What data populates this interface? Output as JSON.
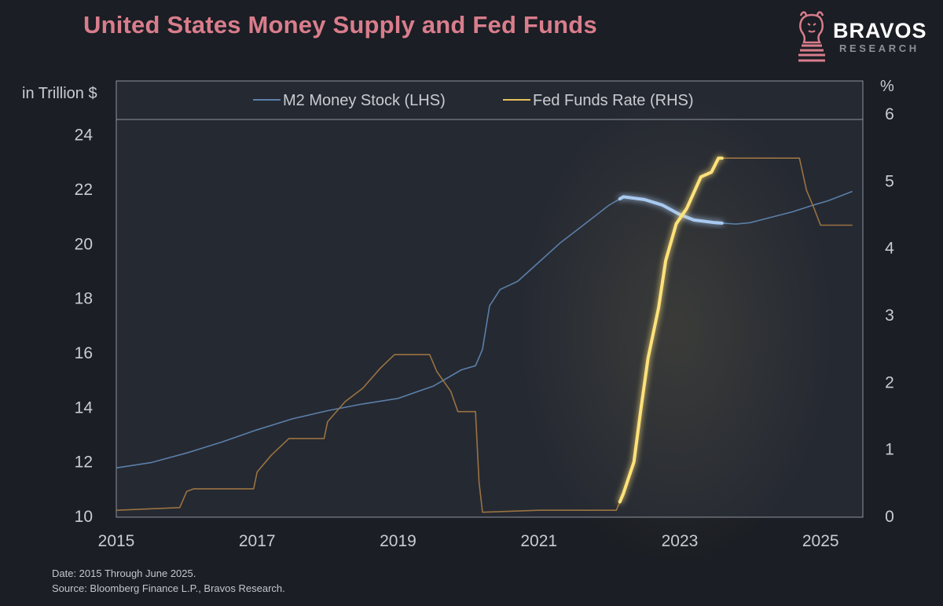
{
  "header": {
    "title": "United States Money Supply and Fed Funds"
  },
  "brand": {
    "name": "BRAVOS",
    "sub": "RESEARCH",
    "icon": "bull-chess-knight-icon",
    "accent": "#d97d8c"
  },
  "footer": {
    "date_note": "Date: 2015 Through June 2025.",
    "source_note": "Source: Bloomberg Finance L.P., Bravos Research."
  },
  "chart_data": {
    "type": "line",
    "title": "United States Money Supply and Fed Funds",
    "left_axis": {
      "label": "in Trillion $",
      "range": [
        10,
        25
      ],
      "ticks": [
        10,
        12,
        14,
        16,
        18,
        20,
        22,
        24
      ]
    },
    "right_axis": {
      "label": "%",
      "range": [
        0,
        6
      ],
      "ticks": [
        0,
        1,
        2,
        3,
        4,
        5,
        6
      ]
    },
    "x_axis": {
      "range": [
        2015.0,
        2025.6
      ],
      "ticks": [
        2015,
        2017,
        2019,
        2021,
        2023,
        2025
      ]
    },
    "legend": {
      "position": "top",
      "entries": [
        "M2 Money Stock (LHS)",
        "Fed Funds Rate (RHS)"
      ]
    },
    "grid": false,
    "highlight_window": [
      2022.15,
      2023.6
    ],
    "series": [
      {
        "name": "M2 Money Stock (LHS)",
        "axis": "left",
        "color": "#5b7fa8",
        "highlight_color": "#a9c9f0",
        "points": [
          [
            2015.0,
            11.75
          ],
          [
            2015.5,
            11.95
          ],
          [
            2016.0,
            12.3
          ],
          [
            2016.5,
            12.7
          ],
          [
            2017.0,
            13.15
          ],
          [
            2017.5,
            13.55
          ],
          [
            2018.0,
            13.85
          ],
          [
            2018.5,
            14.1
          ],
          [
            2019.0,
            14.3
          ],
          [
            2019.5,
            14.75
          ],
          [
            2019.9,
            15.35
          ],
          [
            2020.1,
            15.5
          ],
          [
            2020.2,
            16.1
          ],
          [
            2020.3,
            17.7
          ],
          [
            2020.45,
            18.3
          ],
          [
            2020.7,
            18.6
          ],
          [
            2021.0,
            19.3
          ],
          [
            2021.3,
            20.0
          ],
          [
            2021.5,
            20.4
          ],
          [
            2021.75,
            20.9
          ],
          [
            2022.0,
            21.4
          ],
          [
            2022.2,
            21.7
          ],
          [
            2022.5,
            21.6
          ],
          [
            2022.75,
            21.4
          ],
          [
            2023.0,
            21.05
          ],
          [
            2023.2,
            20.85
          ],
          [
            2023.5,
            20.75
          ],
          [
            2023.8,
            20.7
          ],
          [
            2024.0,
            20.75
          ],
          [
            2024.3,
            20.95
          ],
          [
            2024.6,
            21.15
          ],
          [
            2024.9,
            21.4
          ],
          [
            2025.1,
            21.55
          ],
          [
            2025.3,
            21.75
          ],
          [
            2025.45,
            21.9
          ]
        ]
      },
      {
        "name": "Fed Funds Rate (RHS)",
        "axis": "right",
        "color": "#9a7341",
        "highlight_color": "#ffe27a",
        "points": [
          [
            2015.0,
            0.08
          ],
          [
            2015.9,
            0.12
          ],
          [
            2016.0,
            0.36
          ],
          [
            2016.1,
            0.4
          ],
          [
            2016.95,
            0.4
          ],
          [
            2017.0,
            0.65
          ],
          [
            2017.2,
            0.9
          ],
          [
            2017.45,
            1.15
          ],
          [
            2017.95,
            1.15
          ],
          [
            2018.0,
            1.4
          ],
          [
            2018.25,
            1.7
          ],
          [
            2018.5,
            1.9
          ],
          [
            2018.75,
            2.2
          ],
          [
            2018.95,
            2.4
          ],
          [
            2019.45,
            2.4
          ],
          [
            2019.55,
            2.15
          ],
          [
            2019.75,
            1.85
          ],
          [
            2019.85,
            1.55
          ],
          [
            2020.1,
            1.55
          ],
          [
            2020.15,
            0.5
          ],
          [
            2020.2,
            0.05
          ],
          [
            2021.0,
            0.08
          ],
          [
            2022.1,
            0.08
          ],
          [
            2022.2,
            0.33
          ],
          [
            2022.35,
            0.8
          ],
          [
            2022.45,
            1.6
          ],
          [
            2022.55,
            2.35
          ],
          [
            2022.7,
            3.1
          ],
          [
            2022.8,
            3.8
          ],
          [
            2022.95,
            4.35
          ],
          [
            2023.1,
            4.58
          ],
          [
            2023.3,
            5.05
          ],
          [
            2023.45,
            5.12
          ],
          [
            2023.55,
            5.33
          ],
          [
            2024.7,
            5.33
          ],
          [
            2024.8,
            4.85
          ],
          [
            2024.9,
            4.6
          ],
          [
            2025.0,
            4.33
          ],
          [
            2025.45,
            4.33
          ]
        ]
      }
    ]
  }
}
